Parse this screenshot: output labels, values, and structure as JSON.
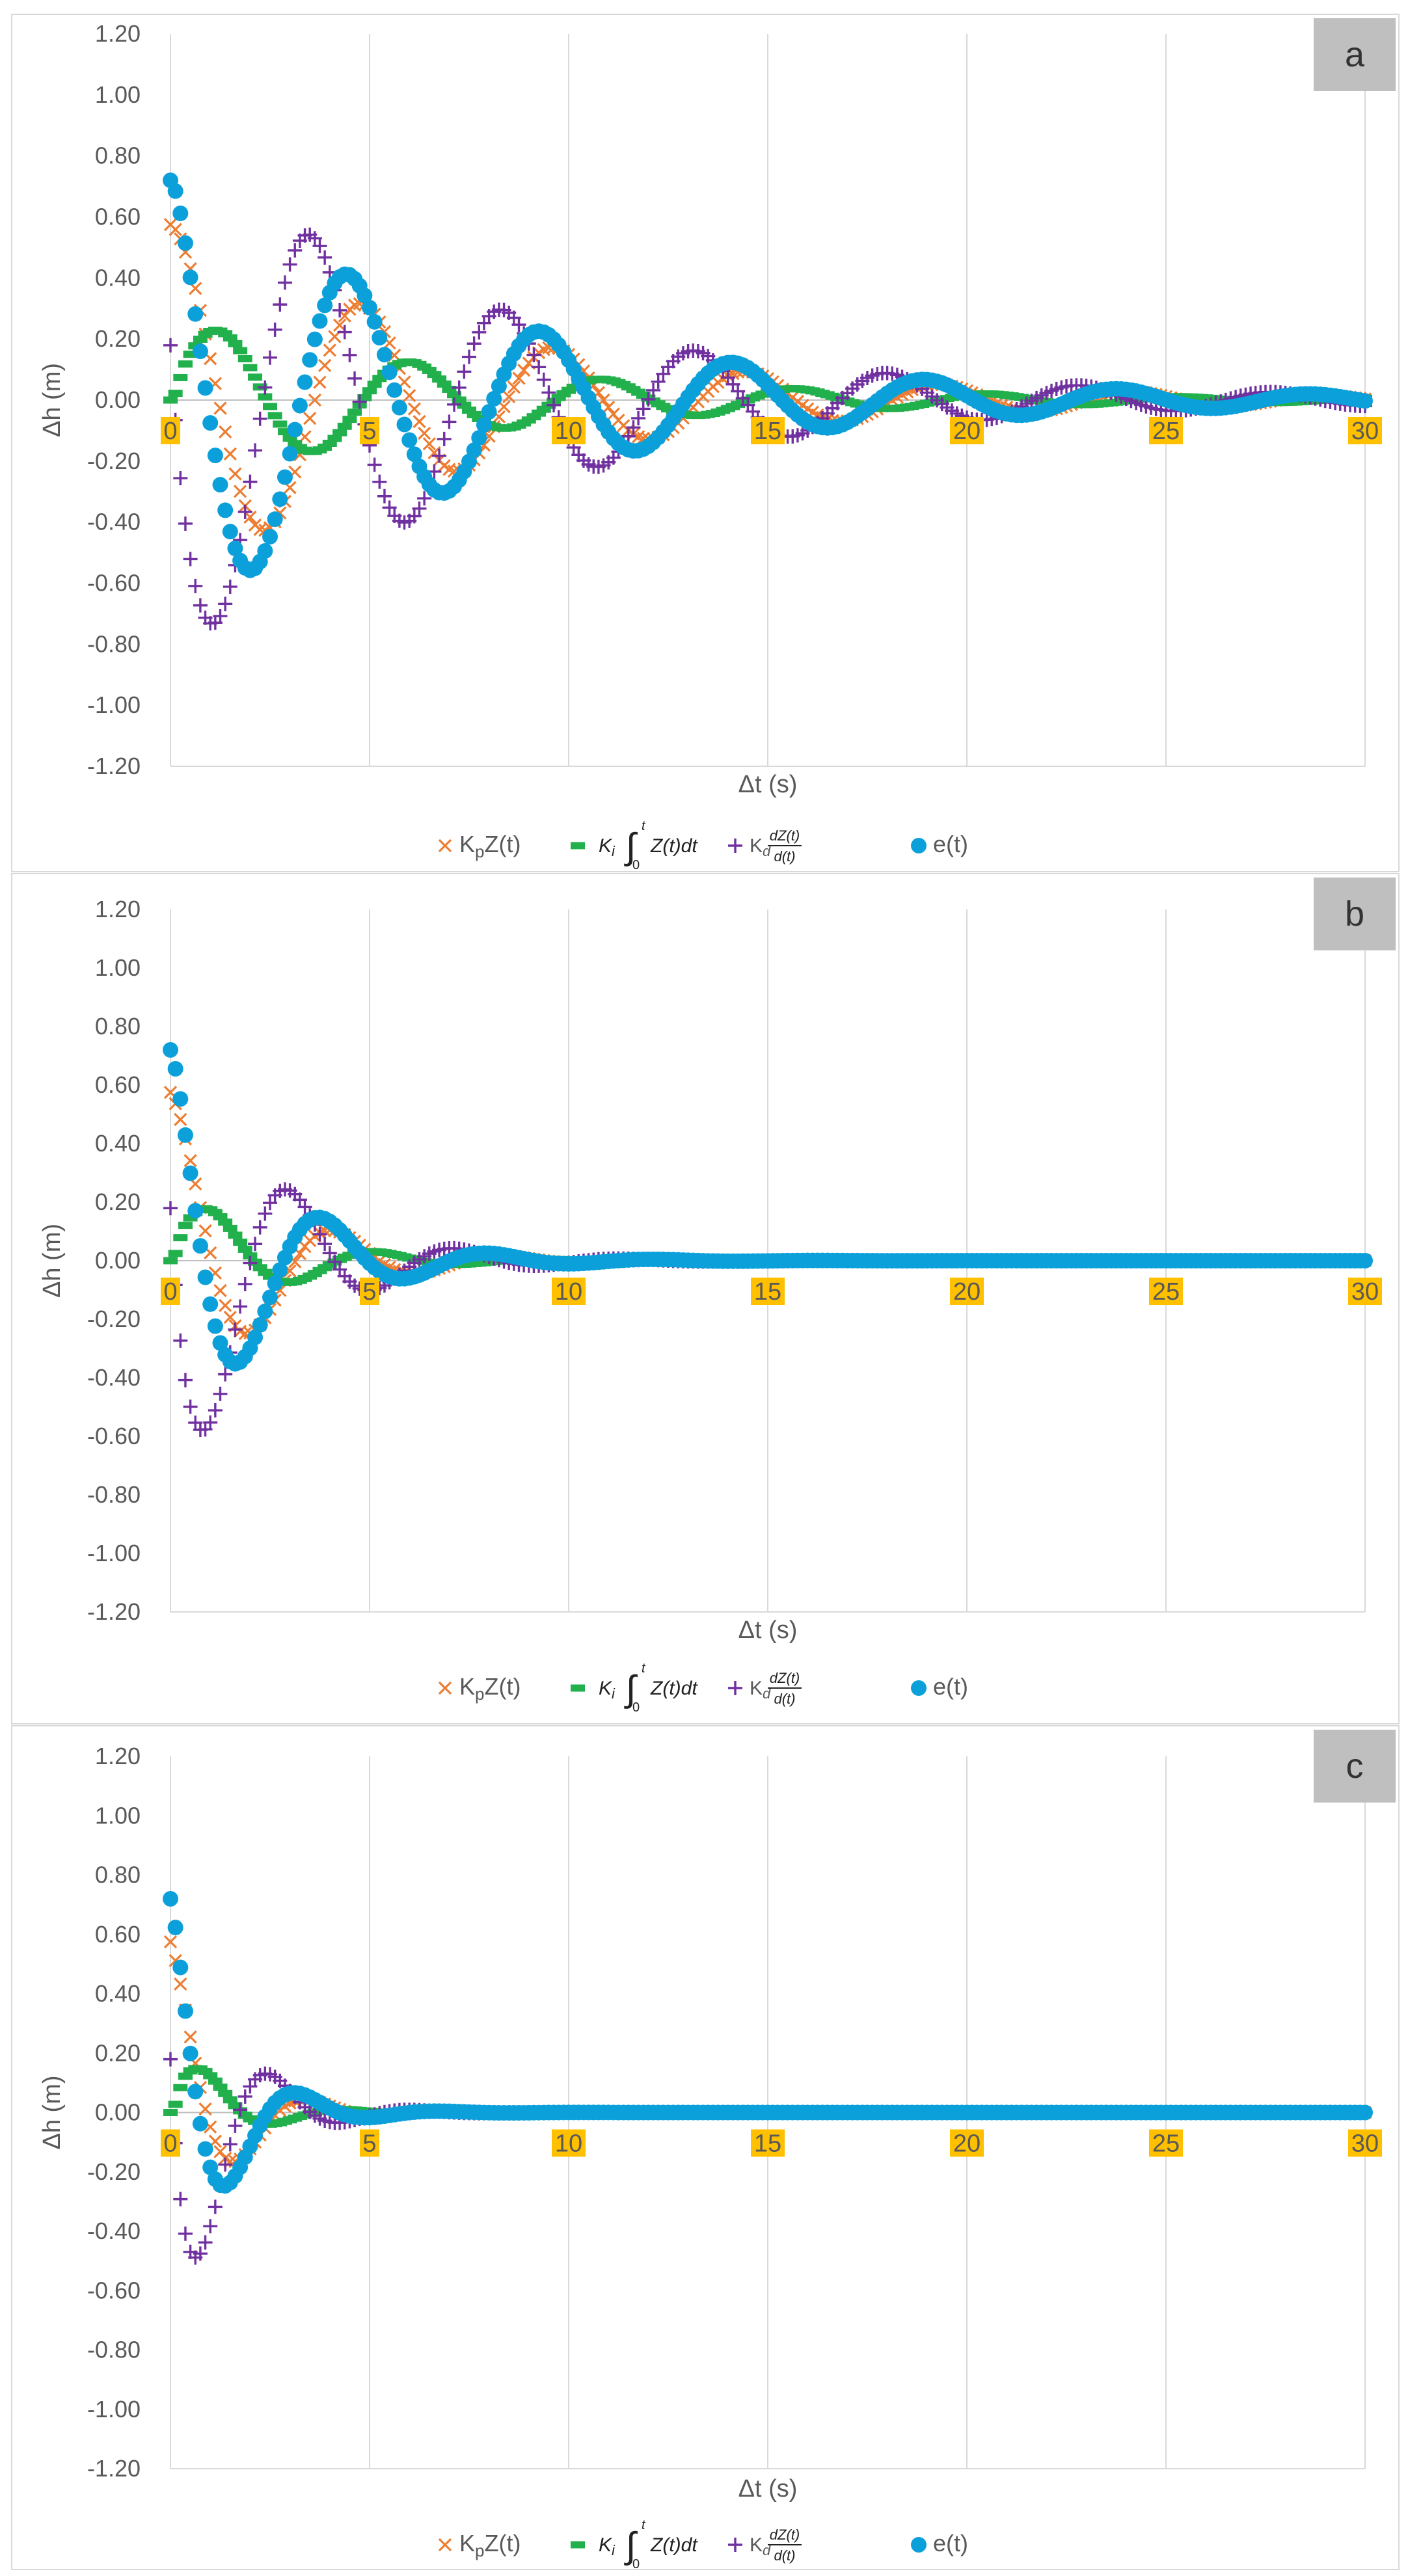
{
  "chart_data": [
    {
      "type": "scatter",
      "panel_label": "a",
      "xlabel": "Δt (s)",
      "ylabel": "Δh (m)",
      "xlim": [
        0,
        30
      ],
      "ylim": [
        -1.2,
        1.2
      ],
      "x_ticks": [
        "0",
        "5",
        "10",
        "15",
        "20",
        "25",
        "30"
      ],
      "y_ticks": [
        "1.20",
        "1.00",
        "0.80",
        "0.60",
        "0.40",
        "0.20",
        "0.00",
        "-0.20",
        "-0.40",
        "-0.60",
        "-0.80",
        "-1.00",
        "-1.20"
      ],
      "grid": "vertical",
      "legend_position": "bottom",
      "model": {
        "A": 0.575,
        "B": 0.28,
        "C": 0.72,
        "tau": 8.0,
        "omega": 1.3
      }
    },
    {
      "type": "scatter",
      "panel_label": "b",
      "xlabel": "Δt (s)",
      "ylabel": "Δh (m)",
      "xlim": [
        0,
        30
      ],
      "ylim": [
        -1.2,
        1.2
      ],
      "x_ticks": [
        "0",
        "5",
        "10",
        "15",
        "20",
        "25",
        "30"
      ],
      "y_ticks": [
        "1.20",
        "1.00",
        "0.80",
        "0.60",
        "0.40",
        "0.20",
        "0.00",
        "-0.20",
        "-0.40",
        "-0.60",
        "-0.80",
        "-1.00",
        "-1.20"
      ],
      "grid": "vertical",
      "legend_position": "bottom",
      "model": {
        "A": 0.575,
        "B": 0.28,
        "C": 0.72,
        "tau": 2.4,
        "omega": 1.5
      }
    },
    {
      "type": "scatter",
      "panel_label": "c",
      "xlabel": "Δt (s)",
      "ylabel": "Δh (m)",
      "xlim": [
        0,
        30
      ],
      "ylim": [
        -1.2,
        1.2
      ],
      "x_ticks": [
        "0",
        "5",
        "10",
        "15",
        "20",
        "25",
        "30"
      ],
      "y_ticks": [
        "1.20",
        "1.00",
        "0.80",
        "0.60",
        "0.40",
        "0.20",
        "0.00",
        "-0.20",
        "-0.40",
        "-0.60",
        "-0.80",
        "-1.00",
        "-1.20"
      ],
      "grid": "vertical",
      "legend_position": "bottom",
      "model": {
        "A": 0.575,
        "B": 0.28,
        "C": 0.72,
        "tau": 1.35,
        "omega": 1.75
      }
    }
  ],
  "series": [
    {
      "key": "kp",
      "name": "KₚZ(t)",
      "marker": "x",
      "color": "#ED7D31"
    },
    {
      "key": "ki",
      "name": "Kᵢ∫₀ᵗ Z(t)dt",
      "marker": "dash",
      "color": "#22B04C"
    },
    {
      "key": "kd",
      "name": "K_d dZ(t)/d(t)",
      "marker": "plus",
      "color": "#7030A0"
    },
    {
      "key": "e",
      "name": "e(t)",
      "marker": "circle",
      "color": "#0CA0DB"
    }
  ],
  "legend": {
    "kp_main": "K",
    "kp_sub": "p",
    "kp_tail": "Z(t)",
    "ki_main": "K",
    "ki_sub": "i",
    "ki_int": "∫",
    "ki_upper": "t",
    "ki_lower": "0",
    "ki_tail": "Z(t)dt",
    "kd_main": "K",
    "kd_sub": "d",
    "kd_num": "dZ(t)",
    "kd_den": "d(t)",
    "e_label": "e(t)"
  },
  "colors": {
    "panel_label_bg": "#BFBFBF",
    "tick_highlight": "#FFC000",
    "grid": "#D9D9D9",
    "axis": "#BFBFBF",
    "text": "#595959",
    "border": "#D9D9D9"
  }
}
